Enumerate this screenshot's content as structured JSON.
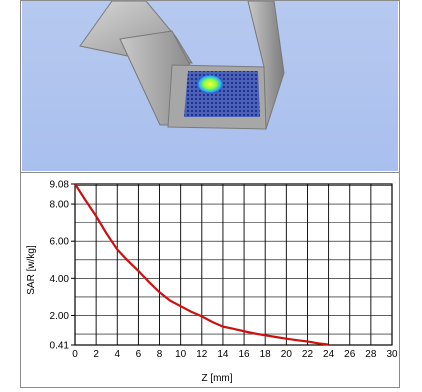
{
  "scene": {
    "description_icon": "sar-phantom-3d-render-icon"
  },
  "chart_data": {
    "type": "line",
    "xlabel": "Z [mm]",
    "ylabel": "SAR [w/kg]",
    "xlim": [
      0,
      30
    ],
    "ylim": [
      0.41,
      9.08
    ],
    "x_ticks": [
      0,
      2,
      4,
      6,
      8,
      10,
      12,
      14,
      16,
      18,
      20,
      22,
      24,
      26,
      28,
      30
    ],
    "x_tick_labels": [
      "0",
      "2",
      "4",
      "6",
      "8",
      "10",
      "12",
      "14",
      "16",
      "18",
      "20",
      "22",
      "24",
      "26",
      "28",
      "30"
    ],
    "y_ticks": [
      0.41,
      2.0,
      4.0,
      6.0,
      8.0,
      9.08
    ],
    "y_tick_labels": [
      "0.41",
      "2.00",
      "4.00",
      "6.00",
      "8.00",
      "9.08"
    ],
    "grid": true,
    "line_color": "#cc1111",
    "series": [
      {
        "x": [
          0,
          1,
          2,
          3,
          4,
          5,
          6,
          7,
          8,
          9,
          10,
          11,
          12,
          13,
          14,
          15,
          16,
          17,
          18,
          19,
          20,
          21,
          22,
          23,
          24
        ],
        "y": [
          9.08,
          8.2,
          7.35,
          6.4,
          5.55,
          4.95,
          4.4,
          3.8,
          3.25,
          2.8,
          2.5,
          2.2,
          1.95,
          1.65,
          1.4,
          1.28,
          1.15,
          1.03,
          0.93,
          0.84,
          0.75,
          0.67,
          0.6,
          0.5,
          0.43
        ]
      }
    ]
  }
}
